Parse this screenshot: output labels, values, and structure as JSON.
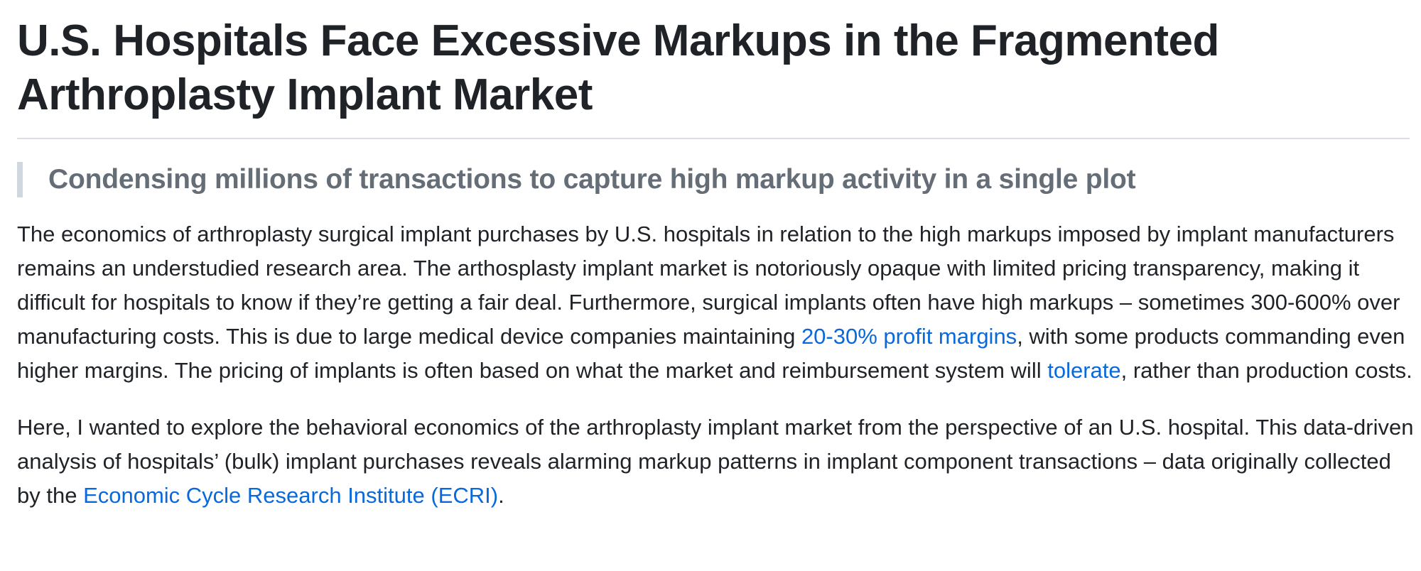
{
  "article": {
    "title": "U.S. Hospitals Face Excessive Markups in the Fragmented Arthroplasty Implant Market",
    "subtitle": "Condensing millions of transactions to capture high markup activity in a single plot",
    "paragraph1": {
      "text_a": "The economics of arthroplasty surgical implant purchases by U.S. hospitals in relation to the high markups imposed by implant manufacturers remains an understudied research area. The arthosplasty implant market is notoriously opaque with limited pricing transparency, making it difficult for hospitals to know if they’re getting a fair deal. Furthermore, surgical implants often have high markups – sometimes 300-600% over manufacturing costs. This is due to large medical device companies maintaining ",
      "link_profit_margins": "20-30% profit margins",
      "text_b": ", with some products commanding even higher margins. The pricing of implants is often based on what the market and reimbursement system will ",
      "link_tolerate": "tolerate",
      "text_c": ", rather than production costs."
    },
    "paragraph2": {
      "text_a": "Here, I wanted to explore the behavioral economics of the arthroplasty implant market from the perspective of an U.S. hospital. This data-driven analysis of hospitals’ (bulk) implant purchases reveals alarming markup patterns in implant component transactions – data originally collected by the ",
      "link_ecri": "Economic Cycle Research Institute (ECRI)",
      "text_b": "."
    }
  },
  "colors": {
    "text": "#1f2328",
    "link": "#0969da",
    "subtitle": "#656d76",
    "rule": "#d8dee4",
    "quote_bar": "#d0d7de"
  }
}
